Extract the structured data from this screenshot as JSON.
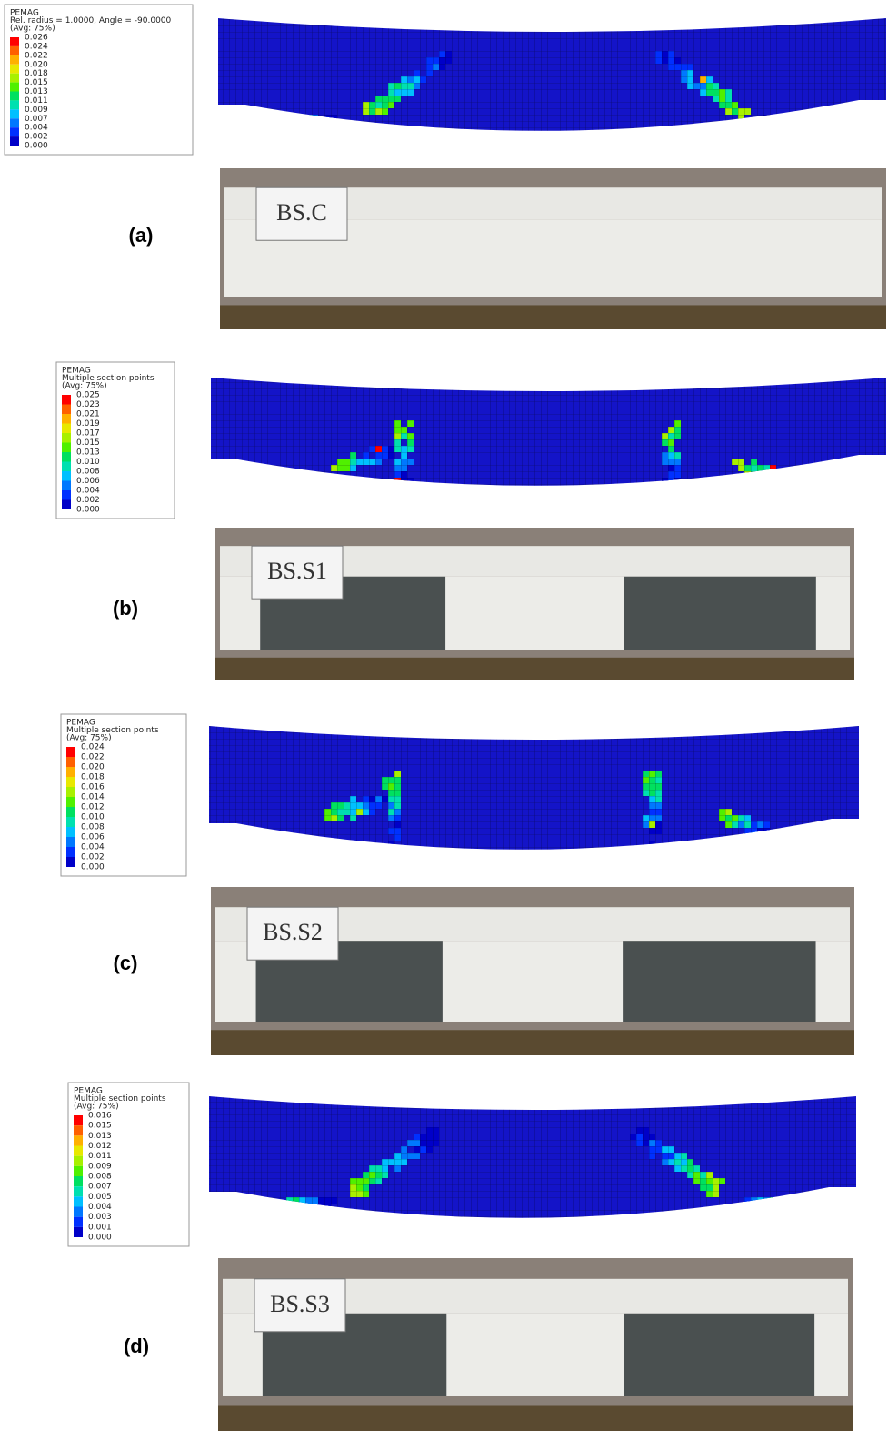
{
  "panels": [
    {
      "label": "(a)",
      "specimen": "BS.C",
      "legend": {
        "lines": [
          "PEMAG",
          "Rel. radius = 1.0000, Angle = -90.0000",
          "(Avg: 75%)"
        ],
        "values": [
          "0.026",
          "0.024",
          "0.022",
          "0.020",
          "0.018",
          "0.015",
          "0.013",
          "0.011",
          "0.009",
          "0.007",
          "0.004",
          "0.002",
          "0.000"
        ]
      }
    },
    {
      "label": "(b)",
      "specimen": "BS.S1",
      "legend": {
        "lines": [
          "PEMAG",
          "Multiple section points",
          "(Avg: 75%)"
        ],
        "values": [
          "0.025",
          "0.023",
          "0.021",
          "0.019",
          "0.017",
          "0.015",
          "0.013",
          "0.010",
          "0.008",
          "0.006",
          "0.004",
          "0.002",
          "0.000"
        ]
      }
    },
    {
      "label": "(c)",
      "specimen": "BS.S2",
      "legend": {
        "lines": [
          "PEMAG",
          "Multiple section points",
          "(Avg: 75%)"
        ],
        "values": [
          "0.024",
          "0.022",
          "0.020",
          "0.018",
          "0.016",
          "0.014",
          "0.012",
          "0.010",
          "0.008",
          "0.006",
          "0.004",
          "0.002",
          "0.000"
        ]
      }
    },
    {
      "label": "(d)",
      "specimen": "BS.S3",
      "legend": {
        "lines": [
          "PEMAG",
          "Multiple section points",
          "(Avg: 75%)"
        ],
        "values": [
          "0.016",
          "0.015",
          "0.013",
          "0.012",
          "0.011",
          "0.009",
          "0.008",
          "0.007",
          "0.005",
          "0.004",
          "0.003",
          "0.001",
          "0.000"
        ]
      }
    }
  ]
}
